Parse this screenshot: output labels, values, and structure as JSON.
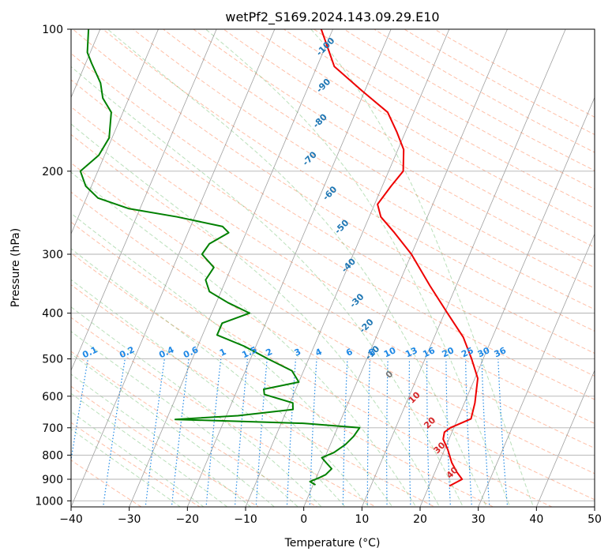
{
  "chart_data": {
    "type": "line",
    "title": "wetPf2_S169.2024.143.09.29.E10",
    "xlabel": "Temperature (°C)",
    "ylabel": "Pressure (hPa)",
    "xlim": [
      -40,
      50
    ],
    "ylim": [
      1030,
      100
    ],
    "y_scale": "log",
    "x_ticks": [
      -40,
      -30,
      -20,
      -10,
      0,
      10,
      20,
      30,
      40,
      50
    ],
    "y_ticks": [
      100,
      200,
      300,
      400,
      500,
      600,
      700,
      800,
      900,
      1000
    ],
    "grid": true,
    "skew": 35,
    "colors": {
      "temperature": "#ee0000",
      "dewpoint": "#008000",
      "dry_adiabat": "#ff7f50",
      "moist_adiabat": "#66bb66",
      "mixing_ratio": "#1e88e5",
      "isotherm": "#808080"
    },
    "series": [
      {
        "name": "",
        "role": "temperature",
        "points": [
          [
            930,
            23.5
          ],
          [
            900,
            25.2
          ],
          [
            870,
            23.8
          ],
          [
            830,
            22.2
          ],
          [
            780,
            20.6
          ],
          [
            740,
            19.0
          ],
          [
            715,
            18.7
          ],
          [
            700,
            19.4
          ],
          [
            670,
            22.3
          ],
          [
            620,
            21.8
          ],
          [
            550,
            20.5
          ],
          [
            500,
            18.0
          ],
          [
            450,
            15.0
          ],
          [
            400,
            10.5
          ],
          [
            350,
            5.5
          ],
          [
            300,
            0.0
          ],
          [
            270,
            -4.5
          ],
          [
            250,
            -8.0
          ],
          [
            235,
            -9.5
          ],
          [
            215,
            -8.5
          ],
          [
            200,
            -7.5
          ],
          [
            180,
            -9.0
          ],
          [
            165,
            -11.5
          ],
          [
            150,
            -14.5
          ],
          [
            135,
            -20.5
          ],
          [
            120,
            -27.0
          ],
          [
            100,
            -32.0
          ]
        ]
      },
      {
        "name": "",
        "role": "dewpoint",
        "points": [
          [
            925,
            0.4
          ],
          [
            910,
            -0.8
          ],
          [
            895,
            0.4
          ],
          [
            880,
            1.4
          ],
          [
            855,
            2.0
          ],
          [
            830,
            0.6
          ],
          [
            810,
            -0.5
          ],
          [
            790,
            1.2
          ],
          [
            760,
            2.6
          ],
          [
            730,
            3.4
          ],
          [
            700,
            3.8
          ],
          [
            685,
            -6.0
          ],
          [
            672,
            -28.5
          ],
          [
            660,
            -18.0
          ],
          [
            640,
            -9.0
          ],
          [
            620,
            -9.5
          ],
          [
            595,
            -15.0
          ],
          [
            580,
            -15.5
          ],
          [
            560,
            -10.0
          ],
          [
            530,
            -12.0
          ],
          [
            500,
            -17.0
          ],
          [
            470,
            -22.0
          ],
          [
            445,
            -27.5
          ],
          [
            420,
            -27.5
          ],
          [
            400,
            -23.5
          ],
          [
            380,
            -28.0
          ],
          [
            360,
            -32.0
          ],
          [
            340,
            -33.5
          ],
          [
            320,
            -33.0
          ],
          [
            300,
            -36.0
          ],
          [
            285,
            -35.5
          ],
          [
            270,
            -33.0
          ],
          [
            262,
            -34.5
          ],
          [
            250,
            -43.0
          ],
          [
            240,
            -52.0
          ],
          [
            228,
            -58.0
          ],
          [
            215,
            -61.0
          ],
          [
            200,
            -63.0
          ],
          [
            185,
            -61.0
          ],
          [
            170,
            -60.5
          ],
          [
            150,
            -62.0
          ],
          [
            140,
            -64.5
          ],
          [
            130,
            -66.0
          ],
          [
            118,
            -69.0
          ],
          [
            112,
            -70.5
          ],
          [
            100,
            -72.0
          ]
        ]
      }
    ],
    "isotherm_labels": [
      "-100",
      "-90",
      "-80",
      "-70",
      "-60",
      "-50",
      "-40",
      "-30",
      "-20",
      "-10",
      "0",
      "10",
      "20",
      "30",
      "40"
    ],
    "mixing_ratio_labels": [
      "0.1",
      "0.2",
      "0.4",
      "0.6",
      "1",
      "1.5",
      "2",
      "3",
      "4",
      "6",
      "8",
      "10",
      "13",
      "16",
      "20",
      "25",
      "30",
      "36"
    ]
  }
}
